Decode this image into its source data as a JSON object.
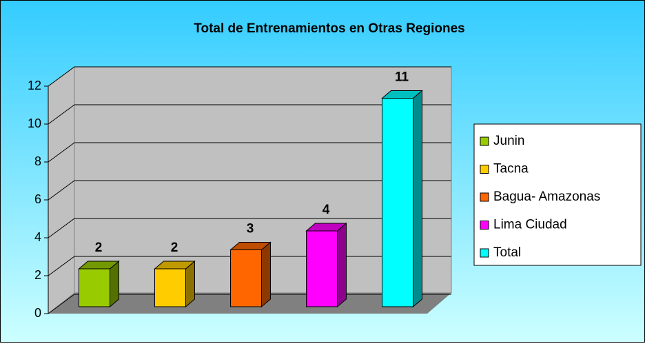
{
  "chart_data": {
    "type": "bar3d",
    "title": "Total de Entrenamientos en Otras Regiones",
    "series": [
      {
        "name": "Junin",
        "color": "#99cc00",
        "values": [
          2
        ]
      },
      {
        "name": "Tacna",
        "color": "#ffcc00",
        "values": [
          2
        ]
      },
      {
        "name": "Bagua- Amazonas",
        "color": "#ff6600",
        "values": [
          3
        ]
      },
      {
        "name": "Lima Ciudad",
        "color": "#ff00ff",
        "values": [
          4
        ]
      },
      {
        "name": "Total",
        "color": "#00ffff",
        "values": [
          11
        ]
      }
    ],
    "ylim": [
      0,
      12
    ],
    "yticks": [
      0,
      2,
      4,
      6,
      8,
      10,
      12
    ],
    "grid": true,
    "legend": "right"
  }
}
